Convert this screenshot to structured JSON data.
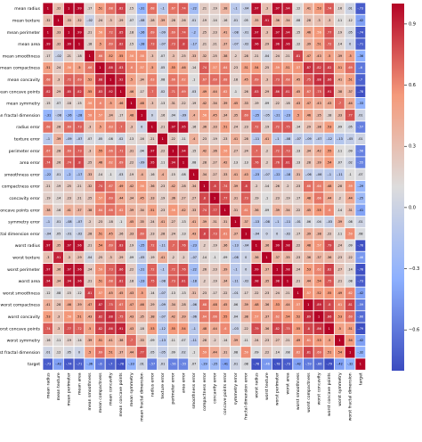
{
  "chart_data": {
    "type": "heatmap",
    "title": "",
    "xlabel": "",
    "ylabel": "",
    "colormap": "coolwarm",
    "value_range": [
      -0.8,
      1.0
    ],
    "grid": true,
    "legend": "colorbar-right",
    "labels": [
      "mean radius",
      "mean texture",
      "mean perimeter",
      "mean area",
      "mean smoothness",
      "mean compactness",
      "mean concavity",
      "mean concave points",
      "mean symmetry",
      "mean fractal dimension",
      "radius error",
      "texture error",
      "perimeter error",
      "area error",
      "smoothness error",
      "compactness error",
      "concavity error",
      "concave points error",
      "symmetry error",
      "fractal dimension error",
      "worst radius",
      "worst texture",
      "worst perimeter",
      "worst area",
      "worst smoothness",
      "worst compactness",
      "worst concavity",
      "worst concave points",
      "worst symmetry",
      "worst fractal dimension",
      "target"
    ],
    "matrix": [
      [
        1.0,
        0.32,
        1.0,
        0.99,
        0.17,
        0.51,
        0.68,
        0.82,
        0.15,
        -0.31,
        0.68,
        -0.1,
        0.67,
        0.74,
        -0.22,
        0.21,
        0.19,
        0.38,
        -0.1,
        -0.04,
        0.97,
        0.3,
        0.97,
        0.94,
        0.12,
        0.41,
        0.53,
        0.74,
        0.16,
        0.01,
        -0.73
      ],
      [
        0.32,
        1.0,
        0.33,
        0.32,
        -0.02,
        0.24,
        0.3,
        0.29,
        0.07,
        -0.08,
        0.28,
        0.39,
        0.28,
        0.26,
        0.01,
        0.19,
        0.14,
        0.16,
        0.01,
        0.05,
        0.35,
        0.91,
        0.36,
        0.34,
        0.08,
        0.28,
        0.3,
        0.3,
        0.11,
        0.12,
        -0.42
      ],
      [
        1.0,
        0.33,
        1.0,
        0.99,
        0.21,
        0.56,
        0.72,
        0.85,
        0.18,
        -0.26,
        0.69,
        -0.09,
        0.69,
        0.74,
        -0.2,
        0.25,
        0.23,
        0.41,
        -0.08,
        -0.01,
        0.97,
        0.3,
        0.97,
        0.94,
        0.15,
        0.46,
        0.56,
        0.77,
        0.19,
        0.05,
        -0.74
      ],
      [
        0.99,
        0.32,
        0.99,
        1.0,
        0.18,
        0.5,
        0.69,
        0.82,
        0.15,
        -0.28,
        0.73,
        -0.07,
        0.73,
        0.8,
        -0.17,
        0.21,
        0.21,
        0.37,
        -0.07,
        -0.02,
        0.96,
        0.29,
        0.96,
        0.96,
        0.12,
        0.39,
        0.51,
        0.72,
        0.14,
        0.0,
        -0.71
      ],
      [
        0.17,
        -0.02,
        0.21,
        0.18,
        1.0,
        0.66,
        0.52,
        0.55,
        0.56,
        0.58,
        0.3,
        0.07,
        0.3,
        0.25,
        0.33,
        0.32,
        0.25,
        0.38,
        0.2,
        0.28,
        0.21,
        0.04,
        0.24,
        0.21,
        0.81,
        0.47,
        0.43,
        0.5,
        0.39,
        0.5,
        -0.36
      ],
      [
        0.51,
        0.24,
        0.56,
        0.5,
        0.66,
        1.0,
        0.88,
        0.83,
        0.6,
        0.57,
        0.5,
        0.05,
        0.55,
        0.46,
        0.14,
        0.74,
        0.57,
        0.64,
        0.23,
        0.51,
        0.54,
        0.25,
        0.59,
        0.51,
        0.57,
        0.87,
        0.82,
        0.82,
        0.51,
        0.69,
        -0.6
      ],
      [
        0.68,
        0.3,
        0.72,
        0.69,
        0.52,
        0.88,
        1.0,
        0.92,
        0.5,
        0.34,
        0.63,
        0.08,
        0.66,
        0.62,
        0.1,
        0.67,
        0.69,
        0.68,
        0.18,
        0.45,
        0.69,
        0.3,
        0.73,
        0.68,
        0.45,
        0.75,
        0.88,
        0.86,
        0.41,
        0.51,
        -0.7
      ],
      [
        0.82,
        0.29,
        0.85,
        0.82,
        0.55,
        0.83,
        0.92,
        1.0,
        0.46,
        0.17,
        0.7,
        0.02,
        0.71,
        0.69,
        0.03,
        0.49,
        0.44,
        0.62,
        0.1,
        0.26,
        0.83,
        0.29,
        0.86,
        0.81,
        0.45,
        0.67,
        0.75,
        0.91,
        0.38,
        0.37,
        -0.78
      ],
      [
        0.15,
        0.07,
        0.18,
        0.15,
        0.56,
        0.6,
        0.5,
        0.46,
        1.0,
        0.48,
        0.3,
        0.13,
        0.31,
        0.22,
        0.19,
        0.42,
        0.34,
        0.39,
        0.45,
        0.33,
        0.19,
        0.09,
        0.22,
        0.18,
        0.43,
        0.47,
        0.43,
        0.43,
        0.7,
        0.44,
        -0.33
      ],
      [
        -0.31,
        -0.08,
        -0.26,
        -0.28,
        0.58,
        0.57,
        0.34,
        0.17,
        0.48,
        1.0,
        0.0,
        0.16,
        0.04,
        -0.09,
        0.4,
        0.56,
        0.45,
        0.34,
        0.35,
        0.69,
        -0.25,
        -0.05,
        -0.21,
        -0.23,
        0.5,
        0.46,
        0.35,
        0.18,
        0.33,
        0.77,
        0.01
      ],
      [
        0.68,
        0.28,
        0.69,
        0.73,
        0.3,
        0.5,
        0.63,
        0.7,
        0.3,
        0.0,
        1.0,
        0.21,
        0.97,
        0.95,
        0.16,
        0.36,
        0.33,
        0.51,
        0.24,
        0.23,
        0.72,
        0.19,
        0.72,
        0.75,
        0.14,
        0.29,
        0.38,
        0.53,
        0.09,
        0.05,
        -0.57
      ],
      [
        -0.1,
        0.39,
        -0.09,
        -0.07,
        0.07,
        0.05,
        0.08,
        0.02,
        0.13,
        0.16,
        0.21,
        1.0,
        0.22,
        0.11,
        0.4,
        0.23,
        0.19,
        0.23,
        0.41,
        0.28,
        -0.11,
        0.41,
        -0.1,
        -0.08,
        -0.07,
        -0.09,
        -0.07,
        -0.12,
        -0.13,
        -0.05,
        0.01
      ],
      [
        0.67,
        0.28,
        0.69,
        0.73,
        0.3,
        0.55,
        0.66,
        0.71,
        0.31,
        0.04,
        0.97,
        0.22,
        1.0,
        0.94,
        0.15,
        0.42,
        0.36,
        0.56,
        0.27,
        0.24,
        0.7,
        0.2,
        0.72,
        0.73,
        0.13,
        0.34,
        0.42,
        0.55,
        0.11,
        0.09,
        -0.56
      ],
      [
        0.74,
        0.26,
        0.74,
        0.8,
        0.25,
        0.46,
        0.62,
        0.69,
        0.22,
        -0.09,
        0.95,
        0.11,
        0.94,
        1.0,
        0.08,
        0.28,
        0.27,
        0.42,
        0.13,
        0.13,
        0.76,
        0.2,
        0.76,
        0.81,
        0.13,
        0.28,
        0.39,
        0.54,
        0.07,
        0.02,
        -0.55
      ],
      [
        -0.22,
        0.01,
        -0.2,
        -0.17,
        0.33,
        0.14,
        0.1,
        0.03,
        0.19,
        0.4,
        0.16,
        0.4,
        0.15,
        0.08,
        1.0,
        0.34,
        0.27,
        0.33,
        0.41,
        0.43,
        -0.23,
        -0.07,
        -0.22,
        -0.18,
        0.31,
        -0.06,
        -0.06,
        -0.1,
        -0.11,
        0.1,
        0.07
      ],
      [
        0.21,
        0.19,
        0.25,
        0.21,
        0.32,
        0.74,
        0.67,
        0.49,
        0.42,
        0.56,
        0.36,
        0.23,
        0.42,
        0.28,
        0.34,
        1.0,
        0.8,
        0.74,
        0.39,
        0.8,
        0.2,
        0.14,
        0.26,
        0.2,
        0.23,
        0.68,
        0.64,
        0.48,
        0.28,
        0.59,
        -0.29
      ],
      [
        0.19,
        0.14,
        0.23,
        0.21,
        0.25,
        0.57,
        0.69,
        0.44,
        0.34,
        0.45,
        0.33,
        0.19,
        0.36,
        0.27,
        0.27,
        0.8,
        1.0,
        0.77,
        0.31,
        0.73,
        0.19,
        0.1,
        0.23,
        0.19,
        0.17,
        0.48,
        0.66,
        0.44,
        0.2,
        0.44,
        -0.25
      ],
      [
        0.38,
        0.16,
        0.41,
        0.37,
        0.38,
        0.64,
        0.68,
        0.62,
        0.39,
        0.34,
        0.51,
        0.23,
        0.56,
        0.42,
        0.33,
        0.74,
        0.77,
        1.0,
        0.31,
        0.61,
        0.36,
        0.09,
        0.39,
        0.34,
        0.22,
        0.45,
        0.55,
        0.6,
        0.14,
        0.31,
        -0.41
      ],
      [
        -0.1,
        0.01,
        -0.08,
        -0.07,
        0.2,
        0.23,
        0.18,
        0.1,
        0.45,
        0.35,
        0.24,
        0.41,
        0.27,
        0.13,
        0.41,
        0.39,
        0.31,
        0.31,
        1.0,
        0.37,
        -0.13,
        -0.08,
        -0.1,
        -0.11,
        -0.01,
        0.06,
        0.04,
        -0.03,
        0.39,
        0.08,
        0.01
      ],
      [
        -0.04,
        0.05,
        -0.01,
        -0.02,
        0.28,
        0.51,
        0.45,
        0.26,
        0.33,
        0.69,
        0.23,
        0.28,
        0.24,
        0.13,
        0.43,
        0.8,
        0.73,
        0.61,
        0.37,
        1.0,
        -0.04,
        -0.0,
        -0.0,
        -0.02,
        0.17,
        0.39,
        0.38,
        0.22,
        0.11,
        0.59,
        0.08
      ],
      [
        0.97,
        0.35,
        0.97,
        0.96,
        0.21,
        0.54,
        0.69,
        0.83,
        0.19,
        -0.25,
        0.72,
        -0.11,
        0.7,
        0.76,
        -0.23,
        0.2,
        0.19,
        0.36,
        -0.13,
        -0.04,
        1.0,
        0.36,
        0.99,
        0.98,
        0.22,
        0.48,
        0.57,
        0.79,
        0.24,
        0.09,
        -0.78
      ],
      [
        0.3,
        0.91,
        0.3,
        0.29,
        0.04,
        0.25,
        0.3,
        0.29,
        0.09,
        -0.05,
        0.19,
        0.41,
        0.2,
        0.2,
        -0.07,
        0.14,
        0.1,
        0.09,
        -0.08,
        -0.0,
        0.36,
        1.0,
        0.37,
        0.35,
        0.23,
        0.36,
        0.37,
        0.36,
        0.23,
        0.22,
        -0.46
      ],
      [
        0.97,
        0.36,
        0.97,
        0.96,
        0.24,
        0.59,
        0.73,
        0.86,
        0.22,
        -0.21,
        0.72,
        -0.1,
        0.72,
        0.76,
        -0.22,
        0.26,
        0.23,
        0.39,
        -0.1,
        -0.0,
        0.99,
        0.37,
        1.0,
        0.98,
        0.24,
        0.53,
        0.62,
        0.82,
        0.27,
        0.14,
        -0.78
      ],
      [
        0.94,
        0.34,
        0.94,
        0.96,
        0.21,
        0.51,
        0.68,
        0.81,
        0.18,
        -0.23,
        0.75,
        -0.08,
        0.73,
        0.81,
        -0.18,
        0.2,
        0.19,
        0.34,
        -0.11,
        -0.02,
        0.98,
        0.35,
        0.98,
        1.0,
        0.21,
        0.44,
        0.54,
        0.75,
        0.21,
        0.08,
        -0.73
      ],
      [
        0.12,
        0.08,
        0.15,
        0.12,
        0.81,
        0.57,
        0.45,
        0.45,
        0.43,
        0.5,
        0.14,
        -0.07,
        0.13,
        0.13,
        0.31,
        0.23,
        0.17,
        0.22,
        -0.01,
        0.17,
        0.22,
        0.23,
        0.24,
        0.21,
        1.0,
        0.57,
        0.52,
        0.55,
        0.49,
        0.62,
        -0.42
      ],
      [
        0.41,
        0.28,
        0.46,
        0.39,
        0.47,
        0.87,
        0.75,
        0.67,
        0.47,
        0.46,
        0.29,
        -0.09,
        0.34,
        0.28,
        -0.06,
        0.68,
        0.48,
        0.45,
        0.06,
        0.39,
        0.48,
        0.36,
        0.53,
        0.44,
        0.57,
        1.0,
        0.89,
        0.8,
        0.61,
        0.81,
        -0.59
      ],
      [
        0.53,
        0.3,
        0.56,
        0.51,
        0.43,
        0.82,
        0.88,
        0.75,
        0.43,
        0.35,
        0.38,
        -0.07,
        0.42,
        0.39,
        -0.06,
        0.64,
        0.66,
        0.55,
        0.04,
        0.38,
        0.57,
        0.37,
        0.62,
        0.54,
        0.52,
        0.89,
        1.0,
        0.86,
        0.53,
        0.69,
        -0.66
      ],
      [
        0.74,
        0.3,
        0.77,
        0.72,
        0.5,
        0.82,
        0.86,
        0.91,
        0.43,
        0.18,
        0.53,
        -0.12,
        0.55,
        0.54,
        -0.1,
        0.48,
        0.44,
        0.6,
        -0.03,
        0.22,
        0.79,
        0.36,
        0.82,
        0.75,
        0.55,
        0.8,
        0.86,
        1.0,
        0.5,
        0.51,
        -0.79
      ],
      [
        0.16,
        0.11,
        0.19,
        0.14,
        0.39,
        0.51,
        0.41,
        0.38,
        0.7,
        0.33,
        0.09,
        -0.13,
        0.11,
        0.07,
        -0.11,
        0.28,
        0.2,
        0.14,
        0.39,
        0.11,
        0.24,
        0.23,
        0.27,
        0.21,
        0.49,
        0.61,
        0.53,
        0.5,
        1.0,
        0.54,
        -0.42
      ],
      [
        0.01,
        0.12,
        0.05,
        0.0,
        0.5,
        0.69,
        0.51,
        0.37,
        0.44,
        0.77,
        0.05,
        -0.05,
        0.09,
        0.02,
        0.1,
        0.59,
        0.44,
        0.31,
        0.08,
        0.59,
        0.09,
        0.22,
        0.14,
        0.08,
        0.62,
        0.81,
        0.69,
        0.51,
        0.54,
        1.0,
        -0.32
      ],
      [
        -0.73,
        -0.42,
        -0.74,
        -0.71,
        -0.36,
        -0.6,
        -0.7,
        -0.78,
        -0.33,
        0.01,
        -0.57,
        0.01,
        -0.56,
        -0.55,
        0.07,
        -0.29,
        -0.25,
        -0.41,
        0.01,
        0.08,
        -0.78,
        -0.46,
        -0.78,
        -0.73,
        -0.42,
        -0.59,
        -0.66,
        -0.79,
        -0.42,
        -0.32,
        1.0
      ]
    ],
    "colorbar_ticks": [
      0.9,
      0.6,
      0.3,
      0.0,
      -0.3,
      -0.6
    ]
  }
}
